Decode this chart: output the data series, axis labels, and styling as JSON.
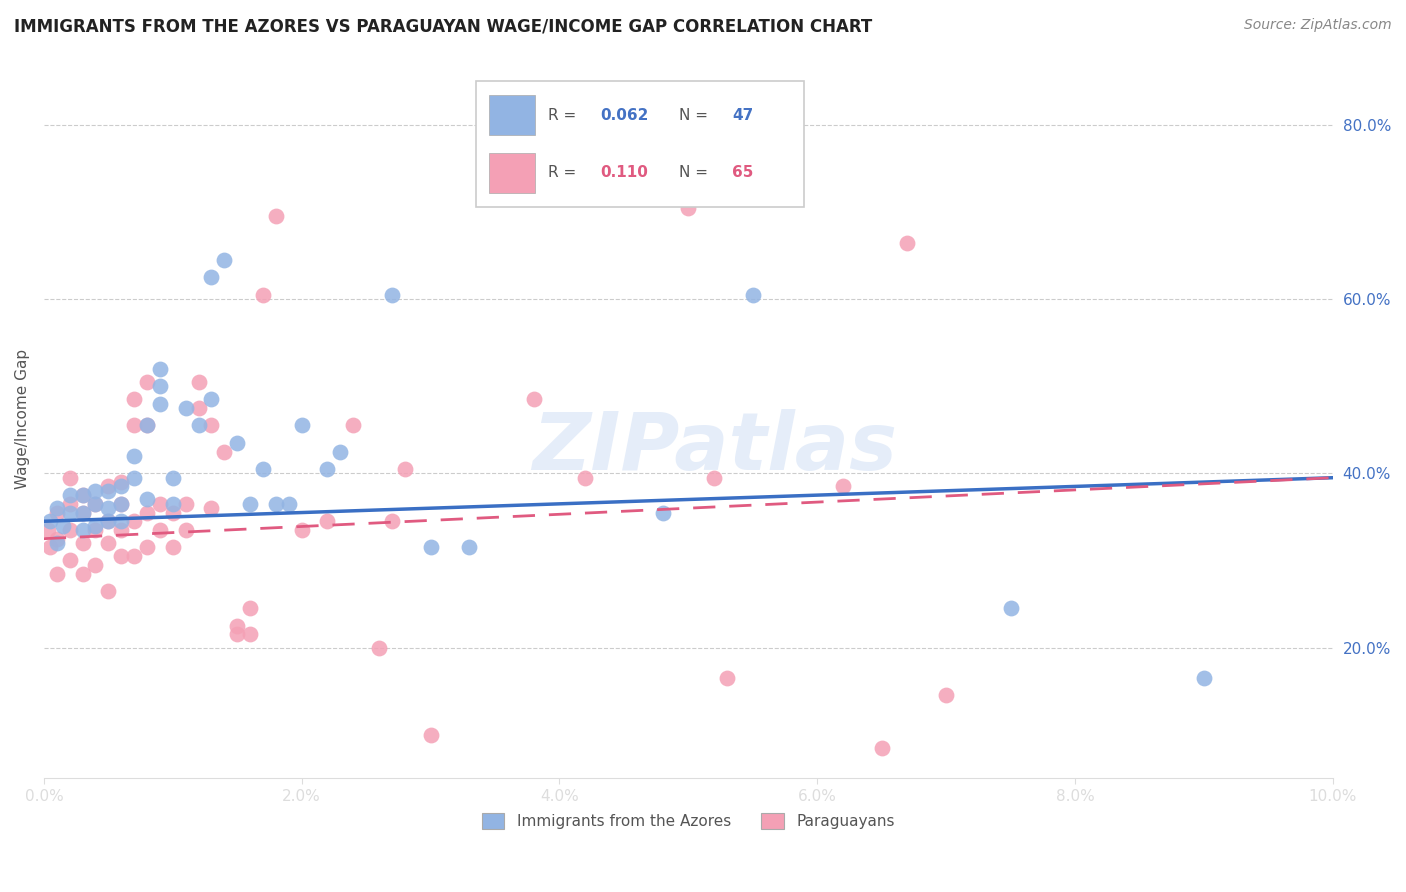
{
  "title": "IMMIGRANTS FROM THE AZORES VS PARAGUAYAN WAGE/INCOME GAP CORRELATION CHART",
  "source": "Source: ZipAtlas.com",
  "ylabel": "Wage/Income Gap",
  "yticks": [
    0.2,
    0.4,
    0.6,
    0.8
  ],
  "ytick_labels": [
    "20.0%",
    "40.0%",
    "60.0%",
    "80.0%"
  ],
  "xlim": [
    0.0,
    0.1
  ],
  "ylim": [
    0.05,
    0.875
  ],
  "color_blue": "#92b4e3",
  "color_pink": "#f4a0b5",
  "trendline_blue": "#3a6fc4",
  "trendline_pink": "#e05a80",
  "watermark": "ZIPatlas",
  "blue_points_x": [
    0.0005,
    0.001,
    0.001,
    0.0015,
    0.002,
    0.002,
    0.003,
    0.003,
    0.003,
    0.004,
    0.004,
    0.004,
    0.005,
    0.005,
    0.005,
    0.006,
    0.006,
    0.006,
    0.007,
    0.007,
    0.008,
    0.008,
    0.009,
    0.009,
    0.009,
    0.01,
    0.01,
    0.011,
    0.012,
    0.013,
    0.013,
    0.014,
    0.015,
    0.016,
    0.017,
    0.018,
    0.019,
    0.02,
    0.022,
    0.023,
    0.027,
    0.03,
    0.033,
    0.048,
    0.055,
    0.075,
    0.09
  ],
  "blue_points_y": [
    0.345,
    0.32,
    0.36,
    0.34,
    0.355,
    0.375,
    0.335,
    0.355,
    0.375,
    0.34,
    0.365,
    0.38,
    0.345,
    0.36,
    0.38,
    0.345,
    0.365,
    0.385,
    0.395,
    0.42,
    0.37,
    0.455,
    0.48,
    0.5,
    0.52,
    0.365,
    0.395,
    0.475,
    0.455,
    0.485,
    0.625,
    0.645,
    0.435,
    0.365,
    0.405,
    0.365,
    0.365,
    0.455,
    0.405,
    0.425,
    0.605,
    0.315,
    0.315,
    0.355,
    0.605,
    0.245,
    0.165
  ],
  "pink_points_x": [
    0.0003,
    0.0005,
    0.001,
    0.001,
    0.001,
    0.002,
    0.002,
    0.002,
    0.002,
    0.003,
    0.003,
    0.003,
    0.003,
    0.004,
    0.004,
    0.004,
    0.005,
    0.005,
    0.005,
    0.005,
    0.006,
    0.006,
    0.006,
    0.006,
    0.007,
    0.007,
    0.007,
    0.007,
    0.008,
    0.008,
    0.008,
    0.008,
    0.009,
    0.009,
    0.01,
    0.01,
    0.011,
    0.011,
    0.012,
    0.012,
    0.013,
    0.013,
    0.014,
    0.015,
    0.015,
    0.016,
    0.016,
    0.017,
    0.018,
    0.02,
    0.022,
    0.024,
    0.026,
    0.027,
    0.028,
    0.03,
    0.038,
    0.042,
    0.05,
    0.052,
    0.053,
    0.062,
    0.065,
    0.067,
    0.07
  ],
  "pink_points_y": [
    0.335,
    0.315,
    0.285,
    0.325,
    0.355,
    0.3,
    0.335,
    0.365,
    0.395,
    0.285,
    0.32,
    0.355,
    0.375,
    0.295,
    0.335,
    0.365,
    0.265,
    0.32,
    0.345,
    0.385,
    0.305,
    0.335,
    0.365,
    0.39,
    0.305,
    0.345,
    0.455,
    0.485,
    0.315,
    0.355,
    0.455,
    0.505,
    0.335,
    0.365,
    0.315,
    0.355,
    0.335,
    0.365,
    0.475,
    0.505,
    0.36,
    0.455,
    0.425,
    0.215,
    0.225,
    0.215,
    0.245,
    0.605,
    0.695,
    0.335,
    0.345,
    0.455,
    0.2,
    0.345,
    0.405,
    0.1,
    0.485,
    0.395,
    0.705,
    0.395,
    0.165,
    0.385,
    0.085,
    0.665,
    0.145
  ],
  "blue_trend_x": [
    0.0,
    0.1
  ],
  "blue_trend_y": [
    0.345,
    0.395
  ],
  "pink_trend_x": [
    0.0,
    0.1
  ],
  "pink_trend_y": [
    0.325,
    0.395
  ]
}
